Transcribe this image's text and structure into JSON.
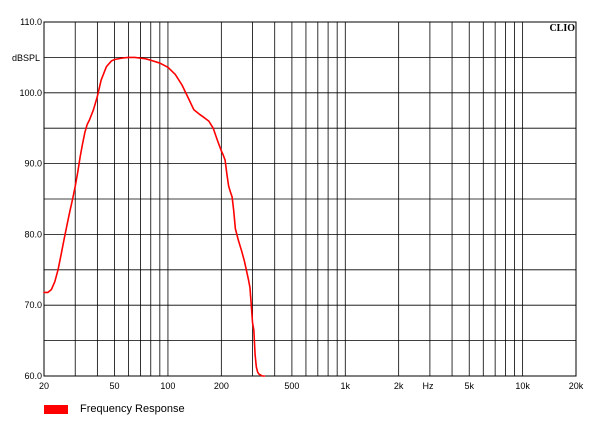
{
  "chart_data": {
    "type": "line",
    "brand": "CLIO",
    "ylabel": "dBSPL",
    "xunit": "Hz",
    "xscale": "log",
    "xlim": [
      20,
      20000
    ],
    "ylim": [
      60,
      110
    ],
    "grid": true,
    "y_ticks": [
      {
        "value": 110,
        "label": "110.0"
      },
      {
        "value": 100,
        "label": "100.0"
      },
      {
        "value": 90,
        "label": "90.0"
      },
      {
        "value": 80,
        "label": "80.0"
      },
      {
        "value": 70,
        "label": "70.0"
      },
      {
        "value": 60,
        "label": "60.0"
      }
    ],
    "y_gridlines": [
      105,
      95,
      85,
      75,
      65
    ],
    "x_ticks": [
      {
        "value": 20,
        "label": "20"
      },
      {
        "value": 50,
        "label": "50"
      },
      {
        "value": 100,
        "label": "100"
      },
      {
        "value": 200,
        "label": "200"
      },
      {
        "value": 500,
        "label": "500"
      },
      {
        "value": 1000,
        "label": "1k"
      },
      {
        "value": 2000,
        "label": "2k"
      },
      {
        "value": 5000,
        "label": "5k"
      },
      {
        "value": 10000,
        "label": "10k"
      },
      {
        "value": 20000,
        "label": "20k"
      }
    ],
    "legend_position": "bottom-left",
    "series": [
      {
        "name": "Frequency Response",
        "color": "#ff0000",
        "x": [
          20,
          21,
          22,
          23,
          24,
          25,
          26,
          27,
          28,
          29,
          30,
          31,
          32,
          33,
          34,
          35,
          36,
          38,
          40,
          42,
          45,
          48,
          50,
          55,
          60,
          65,
          70,
          75,
          80,
          90,
          100,
          110,
          120,
          130,
          140,
          150,
          160,
          170,
          180,
          190,
          200,
          205,
          210,
          215,
          220,
          225,
          230,
          235,
          240,
          250,
          260,
          270,
          280,
          285,
          290,
          295,
          300,
          305,
          310,
          315,
          320,
          325,
          330,
          340,
          350
        ],
        "y": [
          71.8,
          71.8,
          72.2,
          73.3,
          75.0,
          77.2,
          79.4,
          81.4,
          83.3,
          85.0,
          86.8,
          88.8,
          91.0,
          92.8,
          94.4,
          95.5,
          96.1,
          97.6,
          99.5,
          101.8,
          103.7,
          104.5,
          104.7,
          104.9,
          105.0,
          105.0,
          104.9,
          104.8,
          104.6,
          104.2,
          103.6,
          102.6,
          101.1,
          99.3,
          97.6,
          97.0,
          96.5,
          96.0,
          95.0,
          93.3,
          91.8,
          91.2,
          90.5,
          88.5,
          86.8,
          86.0,
          85.3,
          83.3,
          80.8,
          79.1,
          77.7,
          76.2,
          74.4,
          73.5,
          72.5,
          70.0,
          67.5,
          66.5,
          63.0,
          61.3,
          60.6,
          60.3,
          60.2,
          60.0,
          60.0
        ]
      }
    ]
  }
}
